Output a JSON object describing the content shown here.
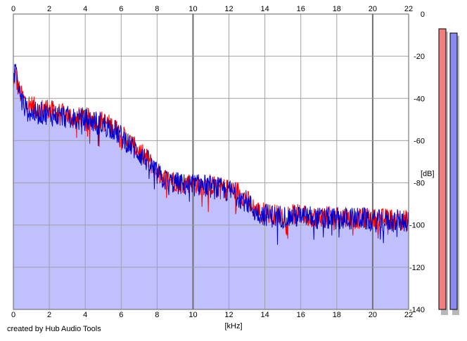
{
  "chart_data": {
    "type": "area",
    "xlabel": "[kHz]",
    "ylabel": "[dB]",
    "xlim": [
      0,
      22
    ],
    "ylim": [
      -140,
      0
    ],
    "x_ticks": [
      0,
      2,
      4,
      6,
      8,
      10,
      12,
      14,
      16,
      18,
      20,
      22
    ],
    "y_ticks": [
      0,
      -20,
      -40,
      -60,
      -80,
      -100,
      -120,
      -140
    ],
    "grid": true,
    "colors": {
      "plot_background": "#ffffff",
      "fill": "#c0c0ff",
      "grid_minor": "#a0a0a0",
      "grid_major": "#6f6f6f",
      "left_channel": "#ff0000",
      "right_channel": "#0000cc",
      "left_meter": "#f08080",
      "right_meter": "#8a8aef"
    },
    "series": [
      {
        "color": "red",
        "x": [
          0,
          0.1,
          0.2,
          0.4,
          0.7,
          1.0,
          1.4,
          1.8,
          2.2,
          2.6,
          3.0,
          3.5,
          4.0,
          4.5,
          5.0,
          5.5,
          6.0,
          6.5,
          7.0,
          7.5,
          8.0,
          8.5,
          9.0,
          9.5,
          10.0,
          10.5,
          11.0,
          11.5,
          12.0,
          12.5,
          13.0,
          13.5,
          14.0,
          14.5,
          15.0,
          15.5,
          16.0,
          16.5,
          17.0,
          17.5,
          18.0,
          18.5,
          19.0,
          19.5,
          20.0,
          20.5,
          21.0,
          21.5,
          22.0
        ],
        "values": [
          -35,
          -28,
          -33,
          -38,
          -42,
          -43,
          -46,
          -44,
          -46,
          -47,
          -48,
          -49,
          -49,
          -50,
          -51,
          -53,
          -57,
          -61,
          -65,
          -69,
          -75,
          -78,
          -79,
          -80,
          -80,
          -81,
          -81,
          -82,
          -83,
          -84,
          -88,
          -93,
          -94,
          -95,
          -95,
          -95,
          -95,
          -96,
          -96,
          -96,
          -96,
          -96,
          -97,
          -97,
          -97,
          -97,
          -97,
          -97,
          -98
        ]
      },
      {
        "color": "blue",
        "x": [
          0,
          0.1,
          0.2,
          0.4,
          0.7,
          1.0,
          1.4,
          1.8,
          2.2,
          2.6,
          3.0,
          3.5,
          4.0,
          4.5,
          5.0,
          5.5,
          6.0,
          6.5,
          7.0,
          7.5,
          8.0,
          8.5,
          9.0,
          9.5,
          10.0,
          10.5,
          11.0,
          11.5,
          12.0,
          12.5,
          13.0,
          13.5,
          14.0,
          14.5,
          15.0,
          15.5,
          16.0,
          16.5,
          17.0,
          17.5,
          18.0,
          18.5,
          19.0,
          19.5,
          20.0,
          20.5,
          21.0,
          21.5,
          22.0
        ],
        "values": [
          -36,
          -22,
          -30,
          -40,
          -45,
          -47,
          -47,
          -47,
          -48,
          -48,
          -49,
          -50,
          -50,
          -51,
          -52,
          -54,
          -58,
          -62,
          -66,
          -70,
          -76,
          -79,
          -80,
          -81,
          -81,
          -81,
          -82,
          -83,
          -84,
          -86,
          -89,
          -94,
          -95,
          -96,
          -96,
          -96,
          -96,
          -96,
          -97,
          -97,
          -97,
          -97,
          -97,
          -97,
          -98,
          -98,
          -98,
          -98,
          -98
        ]
      }
    ],
    "level_meters": [
      {
        "name": "left",
        "level_db": -7
      },
      {
        "name": "right",
        "level_db": -9
      }
    ]
  },
  "footer": {
    "credit": "created by Hub Audio Tools"
  }
}
